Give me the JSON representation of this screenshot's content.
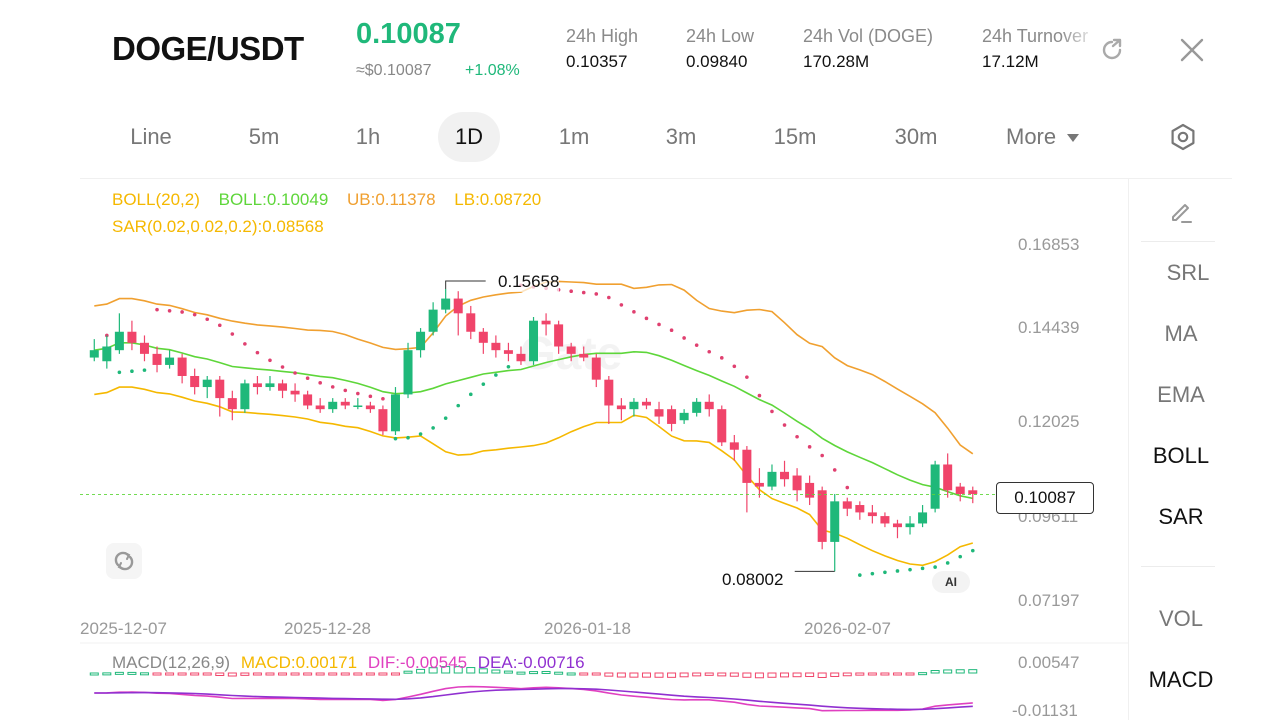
{
  "header": {
    "pair": "DOGE/USDT",
    "price": "0.10087",
    "approx": "≈$0.10087",
    "change": "+1.08%",
    "stats": [
      {
        "label": "24h  High",
        "value": "0.10357"
      },
      {
        "label": "24h  Low",
        "value": "0.09840"
      },
      {
        "label": "24h  Vol (DOGE)",
        "value": "170.28M"
      },
      {
        "label": "24h  Turnover",
        "value": "17.12M"
      }
    ],
    "share_icon": "share-arrow-icon",
    "close_icon": "close-icon"
  },
  "timeframes": {
    "items": [
      "Line",
      "5m",
      "1h",
      "1D",
      "1m",
      "3m",
      "15m",
      "30m",
      "More"
    ],
    "active": "1D",
    "settings_icon": "hexagon-settings-icon"
  },
  "legend": {
    "boll_params": "BOLL(20,2)",
    "boll_mid": "BOLL:0.10049",
    "boll_ub": "UB:0.11378",
    "boll_lb": "LB:0.08720",
    "sar": "SAR(0.02,0.02,0.2):0.08568",
    "macd_params": "MACD(12,26,9)",
    "macd_value": "MACD:0.00171",
    "dif": "DIF:-0.00545",
    "dea": "DEA:-0.00716"
  },
  "colors": {
    "up": "#1fb87a",
    "down": "#f0446a",
    "boll_mid": "#5ed63a",
    "boll_band": "#f0a030",
    "boll_lb": "#f5b800",
    "sar": "#e04070",
    "dif": "#e040c0",
    "dea": "#9030d0"
  },
  "chart_data": {
    "type": "candlestick",
    "price_axis_ticks": [
      "0.16853",
      "0.14439",
      "0.12025",
      "0.09611",
      "0.07197"
    ],
    "macd_axis_ticks": [
      "0.00547",
      "-0.01131"
    ],
    "date_ticks": [
      "2025-12-07",
      "2025-12-28",
      "2026-01-18",
      "2026-02-07"
    ],
    "current_price_tag": "0.10087",
    "high_marker": "0.15658",
    "low_marker": "0.08002",
    "ylim": [
      0.07197,
      0.16853
    ],
    "candles": [
      {
        "o": 0.138,
        "c": 0.14,
        "h": 0.143,
        "l": 0.137
      },
      {
        "o": 0.137,
        "c": 0.141,
        "h": 0.144,
        "l": 0.135
      },
      {
        "o": 0.14,
        "c": 0.145,
        "h": 0.15,
        "l": 0.139
      },
      {
        "o": 0.145,
        "c": 0.142,
        "h": 0.148,
        "l": 0.14
      },
      {
        "o": 0.142,
        "c": 0.139,
        "h": 0.144,
        "l": 0.137
      },
      {
        "o": 0.139,
        "c": 0.136,
        "h": 0.141,
        "l": 0.134
      },
      {
        "o": 0.136,
        "c": 0.138,
        "h": 0.14,
        "l": 0.135
      },
      {
        "o": 0.138,
        "c": 0.133,
        "h": 0.139,
        "l": 0.131
      },
      {
        "o": 0.133,
        "c": 0.13,
        "h": 0.135,
        "l": 0.128
      },
      {
        "o": 0.13,
        "c": 0.132,
        "h": 0.133,
        "l": 0.127
      },
      {
        "o": 0.132,
        "c": 0.127,
        "h": 0.133,
        "l": 0.122
      },
      {
        "o": 0.127,
        "c": 0.124,
        "h": 0.129,
        "l": 0.121
      },
      {
        "o": 0.124,
        "c": 0.131,
        "h": 0.132,
        "l": 0.123
      },
      {
        "o": 0.131,
        "c": 0.13,
        "h": 0.133,
        "l": 0.128
      },
      {
        "o": 0.13,
        "c": 0.131,
        "h": 0.133,
        "l": 0.129
      },
      {
        "o": 0.131,
        "c": 0.129,
        "h": 0.132,
        "l": 0.127
      },
      {
        "o": 0.129,
        "c": 0.128,
        "h": 0.131,
        "l": 0.126
      },
      {
        "o": 0.128,
        "c": 0.125,
        "h": 0.129,
        "l": 0.124
      },
      {
        "o": 0.125,
        "c": 0.124,
        "h": 0.127,
        "l": 0.123
      },
      {
        "o": 0.124,
        "c": 0.126,
        "h": 0.127,
        "l": 0.123
      },
      {
        "o": 0.126,
        "c": 0.125,
        "h": 0.127,
        "l": 0.124
      },
      {
        "o": 0.125,
        "c": 0.125,
        "h": 0.127,
        "l": 0.124
      },
      {
        "o": 0.125,
        "c": 0.124,
        "h": 0.126,
        "l": 0.123
      },
      {
        "o": 0.124,
        "c": 0.118,
        "h": 0.125,
        "l": 0.117
      },
      {
        "o": 0.118,
        "c": 0.128,
        "h": 0.13,
        "l": 0.117
      },
      {
        "o": 0.128,
        "c": 0.14,
        "h": 0.142,
        "l": 0.127
      },
      {
        "o": 0.14,
        "c": 0.145,
        "h": 0.146,
        "l": 0.138
      },
      {
        "o": 0.145,
        "c": 0.151,
        "h": 0.153,
        "l": 0.144
      },
      {
        "o": 0.151,
        "c": 0.154,
        "h": 0.1566,
        "l": 0.15
      },
      {
        "o": 0.154,
        "c": 0.15,
        "h": 0.156,
        "l": 0.144
      },
      {
        "o": 0.15,
        "c": 0.145,
        "h": 0.152,
        "l": 0.143
      },
      {
        "o": 0.145,
        "c": 0.142,
        "h": 0.146,
        "l": 0.139
      },
      {
        "o": 0.142,
        "c": 0.14,
        "h": 0.144,
        "l": 0.138
      },
      {
        "o": 0.14,
        "c": 0.139,
        "h": 0.142,
        "l": 0.137
      },
      {
        "o": 0.139,
        "c": 0.137,
        "h": 0.141,
        "l": 0.136
      },
      {
        "o": 0.137,
        "c": 0.148,
        "h": 0.149,
        "l": 0.136
      },
      {
        "o": 0.148,
        "c": 0.147,
        "h": 0.15,
        "l": 0.144
      },
      {
        "o": 0.147,
        "c": 0.141,
        "h": 0.148,
        "l": 0.139
      },
      {
        "o": 0.141,
        "c": 0.139,
        "h": 0.142,
        "l": 0.137
      },
      {
        "o": 0.139,
        "c": 0.138,
        "h": 0.141,
        "l": 0.137
      },
      {
        "o": 0.138,
        "c": 0.132,
        "h": 0.139,
        "l": 0.13
      },
      {
        "o": 0.132,
        "c": 0.125,
        "h": 0.133,
        "l": 0.12
      },
      {
        "o": 0.125,
        "c": 0.124,
        "h": 0.127,
        "l": 0.121
      },
      {
        "o": 0.124,
        "c": 0.126,
        "h": 0.127,
        "l": 0.122
      },
      {
        "o": 0.126,
        "c": 0.125,
        "h": 0.127,
        "l": 0.124
      },
      {
        "o": 0.124,
        "c": 0.122,
        "h": 0.126,
        "l": 0.12
      },
      {
        "o": 0.124,
        "c": 0.12,
        "h": 0.125,
        "l": 0.118
      },
      {
        "o": 0.121,
        "c": 0.123,
        "h": 0.124,
        "l": 0.12
      },
      {
        "o": 0.123,
        "c": 0.126,
        "h": 0.127,
        "l": 0.122
      },
      {
        "o": 0.126,
        "c": 0.124,
        "h": 0.128,
        "l": 0.122
      },
      {
        "o": 0.124,
        "c": 0.115,
        "h": 0.125,
        "l": 0.114
      },
      {
        "o": 0.115,
        "c": 0.113,
        "h": 0.117,
        "l": 0.11
      },
      {
        "o": 0.113,
        "c": 0.104,
        "h": 0.114,
        "l": 0.096
      },
      {
        "o": 0.104,
        "c": 0.103,
        "h": 0.108,
        "l": 0.1
      },
      {
        "o": 0.103,
        "c": 0.107,
        "h": 0.109,
        "l": 0.102
      },
      {
        "o": 0.107,
        "c": 0.105,
        "h": 0.11,
        "l": 0.103
      },
      {
        "o": 0.106,
        "c": 0.102,
        "h": 0.108,
        "l": 0.099
      },
      {
        "o": 0.104,
        "c": 0.1,
        "h": 0.106,
        "l": 0.098
      },
      {
        "o": 0.102,
        "c": 0.088,
        "h": 0.103,
        "l": 0.086
      },
      {
        "o": 0.088,
        "c": 0.099,
        "h": 0.101,
        "l": 0.08
      },
      {
        "o": 0.099,
        "c": 0.097,
        "h": 0.1,
        "l": 0.095
      },
      {
        "o": 0.098,
        "c": 0.096,
        "h": 0.099,
        "l": 0.094
      },
      {
        "o": 0.096,
        "c": 0.095,
        "h": 0.098,
        "l": 0.093
      },
      {
        "o": 0.095,
        "c": 0.093,
        "h": 0.096,
        "l": 0.092
      },
      {
        "o": 0.093,
        "c": 0.092,
        "h": 0.094,
        "l": 0.089
      },
      {
        "o": 0.092,
        "c": 0.093,
        "h": 0.095,
        "l": 0.09
      },
      {
        "o": 0.093,
        "c": 0.096,
        "h": 0.098,
        "l": 0.092
      },
      {
        "o": 0.097,
        "c": 0.109,
        "h": 0.11,
        "l": 0.096
      },
      {
        "o": 0.109,
        "c": 0.102,
        "h": 0.112,
        "l": 0.1
      },
      {
        "o": 0.103,
        "c": 0.101,
        "h": 0.104,
        "l": 0.099
      },
      {
        "o": 0.102,
        "c": 0.101,
        "h": 0.103,
        "l": 0.0985
      }
    ]
  },
  "side_panel": {
    "edit_icon": "pencil-icon",
    "main_indicators": [
      "SRL",
      "MA",
      "EMA",
      "BOLL",
      "SAR"
    ],
    "active_main": [
      "BOLL",
      "SAR"
    ],
    "sub_indicators": [
      "VOL",
      "MACD"
    ],
    "active_sub": [
      "MACD"
    ]
  },
  "misc": {
    "ai_badge": "AI",
    "watermark_icon": "sync-icon"
  }
}
